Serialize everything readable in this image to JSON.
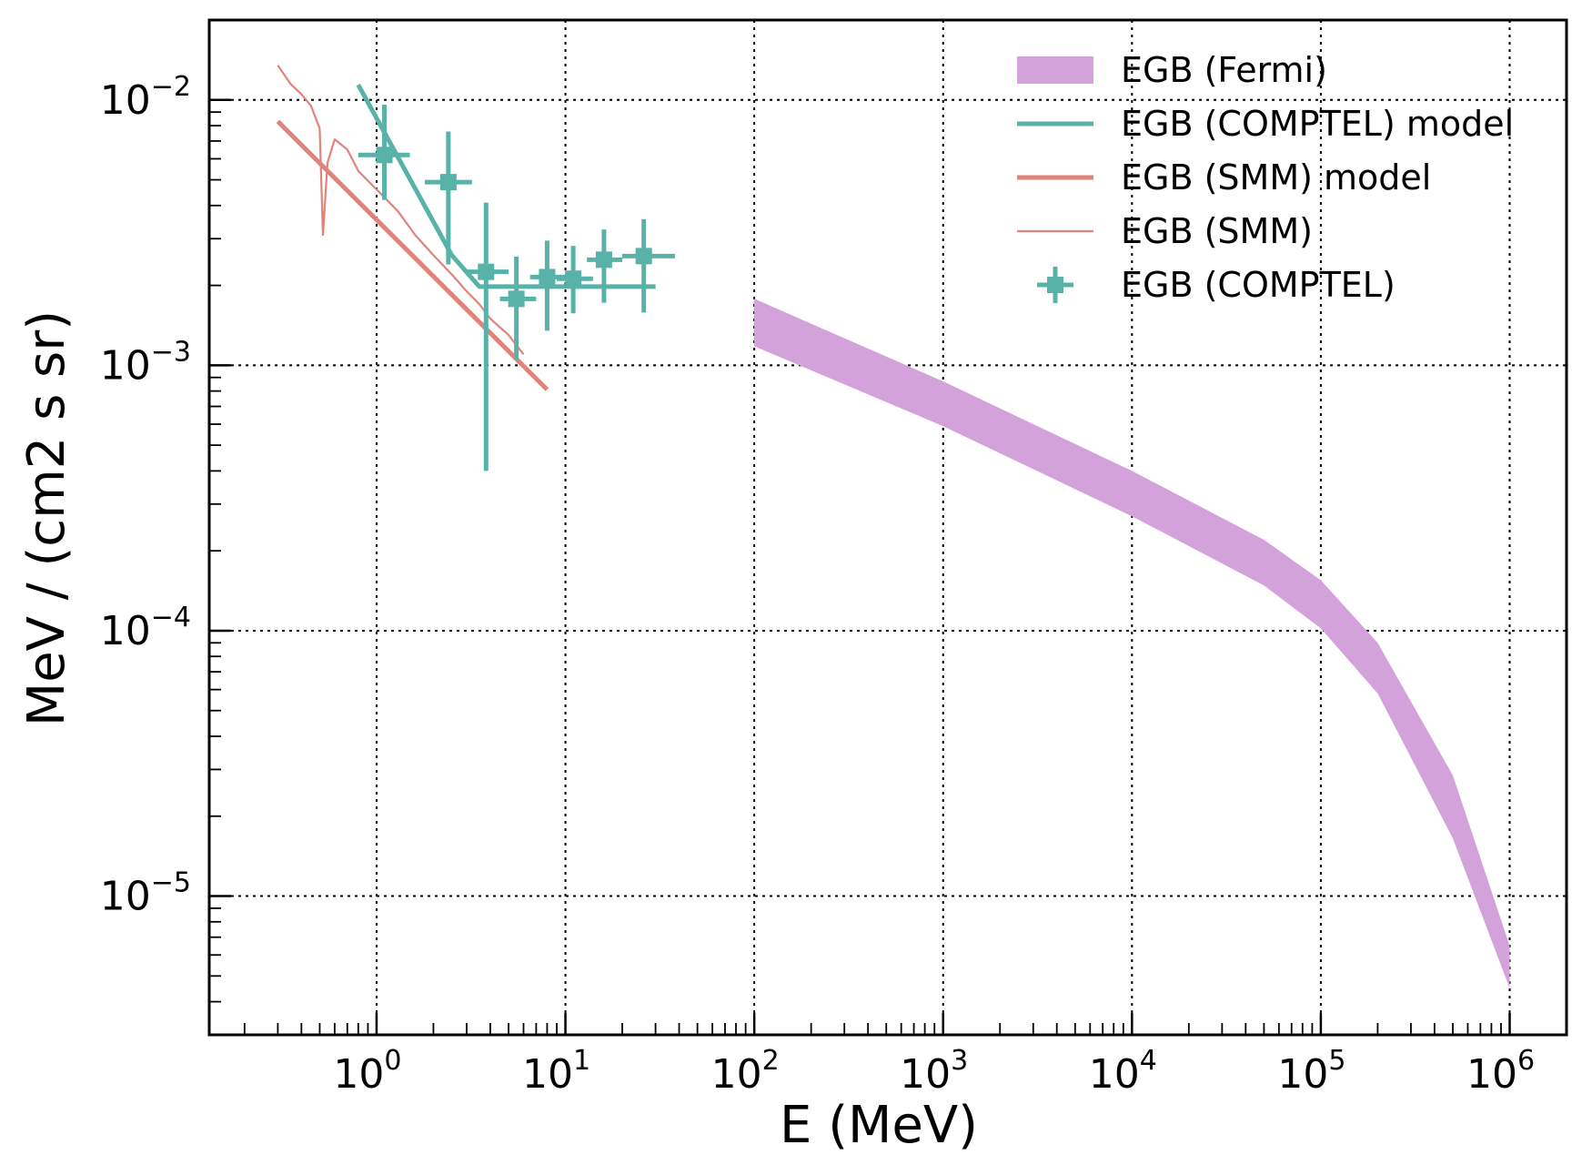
{
  "chart_data": {
    "type": "line",
    "title": "",
    "xlabel": "E (MeV)",
    "ylabel": "MeV / (cm2 s sr)",
    "xscale": "log",
    "yscale": "log",
    "xlim": [
      0.13,
      2000000
    ],
    "ylim": [
      3e-06,
      0.02
    ],
    "grid": true,
    "legend": "top-right",
    "x_ticks": [
      {
        "base": "10",
        "exp": "0",
        "value": 1
      },
      {
        "base": "10",
        "exp": "1",
        "value": 10
      },
      {
        "base": "10",
        "exp": "2",
        "value": 100
      },
      {
        "base": "10",
        "exp": "3",
        "value": 1000
      },
      {
        "base": "10",
        "exp": "4",
        "value": 10000
      },
      {
        "base": "10",
        "exp": "5",
        "value": 100000
      },
      {
        "base": "10",
        "exp": "6",
        "value": 1000000
      }
    ],
    "y_ticks": [
      {
        "base": "10",
        "exp": "−2",
        "value": 0.01
      },
      {
        "base": "10",
        "exp": "−3",
        "value": 0.001
      },
      {
        "base": "10",
        "exp": "−4",
        "value": 0.0001
      },
      {
        "base": "10",
        "exp": "−5",
        "value": 1e-05
      }
    ],
    "series": [
      {
        "name": "EGB (Fermi)",
        "kind": "band",
        "color": "#d4a2da",
        "x": [
          100,
          1000,
          10000,
          50000,
          100000,
          200000,
          500000,
          1000000
        ],
        "y_low": [
          0.00118,
          0.00059,
          0.00027,
          0.000148,
          0.000102,
          5.8e-05,
          1.65e-05,
          4.5e-06
        ],
        "y_high": [
          0.00178,
          0.00087,
          0.0004,
          0.00022,
          0.000155,
          9e-05,
          2.85e-05,
          6.5e-06
        ]
      },
      {
        "name": "EGB (COMPTEL) model",
        "kind": "line",
        "color": "#58b2a8",
        "x": [
          0.8,
          2.5,
          3.5,
          30
        ],
        "y": [
          0.0114,
          0.0026,
          0.00198,
          0.00198
        ]
      },
      {
        "name": "EGB (SMM) model",
        "kind": "line",
        "color": "#e0837a",
        "x": [
          0.3,
          8
        ],
        "y": [
          0.0083,
          0.00081
        ]
      },
      {
        "name": "EGB (SMM)",
        "kind": "thin-line",
        "color": "#e0837a",
        "x": [
          0.3,
          0.35,
          0.4,
          0.45,
          0.5,
          0.52,
          0.55,
          0.6,
          0.7,
          0.8,
          1.0,
          1.3,
          1.6,
          2.0,
          2.5,
          3.0,
          3.5,
          4.0,
          5.0,
          6.0
        ],
        "y": [
          0.0135,
          0.0115,
          0.0105,
          0.0095,
          0.0078,
          0.0031,
          0.0058,
          0.0071,
          0.0065,
          0.0054,
          0.0046,
          0.0038,
          0.0031,
          0.0026,
          0.0022,
          0.0019,
          0.0017,
          0.0015,
          0.0013,
          0.0011
        ]
      },
      {
        "name": "EGB (COMPTEL)",
        "kind": "errorbar",
        "color": "#58b2a8",
        "points": [
          {
            "x": 1.1,
            "y": 0.0062,
            "xlo": 0.8,
            "xhi": 1.5,
            "ylo": 0.0042,
            "yhi": 0.0096
          },
          {
            "x": 2.4,
            "y": 0.0049,
            "xlo": 1.8,
            "xhi": 3.2,
            "ylo": 0.0024,
            "yhi": 0.0076
          },
          {
            "x": 3.8,
            "y": 0.00225,
            "xlo": 3.0,
            "xhi": 5.0,
            "ylo": 0.0004,
            "yhi": 0.0041
          },
          {
            "x": 5.5,
            "y": 0.00178,
            "xlo": 4.5,
            "xhi": 7.0,
            "ylo": 0.00105,
            "yhi": 0.00257
          },
          {
            "x": 8.0,
            "y": 0.00215,
            "xlo": 6.5,
            "xhi": 10.0,
            "ylo": 0.00135,
            "yhi": 0.00295
          },
          {
            "x": 11.0,
            "y": 0.00212,
            "xlo": 9.0,
            "xhi": 14.0,
            "ylo": 0.00157,
            "yhi": 0.00282
          },
          {
            "x": 16.0,
            "y": 0.0025,
            "xlo": 13.0,
            "xhi": 20.0,
            "ylo": 0.00172,
            "yhi": 0.00325
          },
          {
            "x": 26.0,
            "y": 0.00258,
            "xlo": 20.0,
            "xhi": 38.0,
            "ylo": 0.00158,
            "yhi": 0.00355
          }
        ]
      }
    ]
  }
}
